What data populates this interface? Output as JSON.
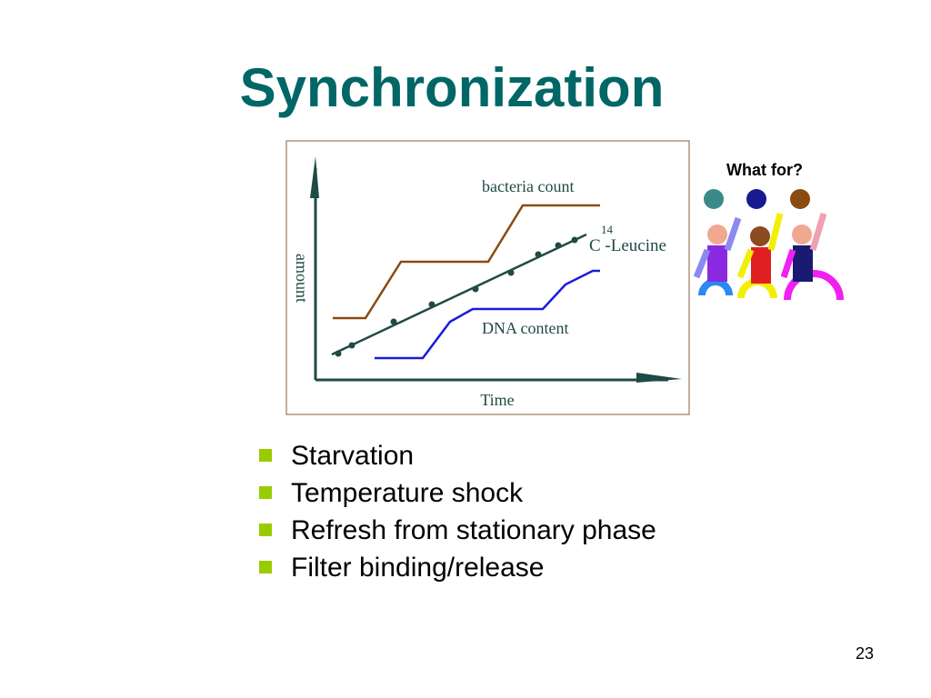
{
  "title": "Synchronization",
  "figure": {
    "bacteria_count": "bacteria count",
    "isotope": "14",
    "leucine": "C -Leucine",
    "dna_content": "DNA content",
    "y_axis": "amount",
    "x_axis": "Time"
  },
  "callout": "What for?",
  "bullets": [
    "Starvation",
    "Temperature shock",
    "Refresh from stationary phase",
    "Filter binding/release"
  ],
  "page_number": "23"
}
